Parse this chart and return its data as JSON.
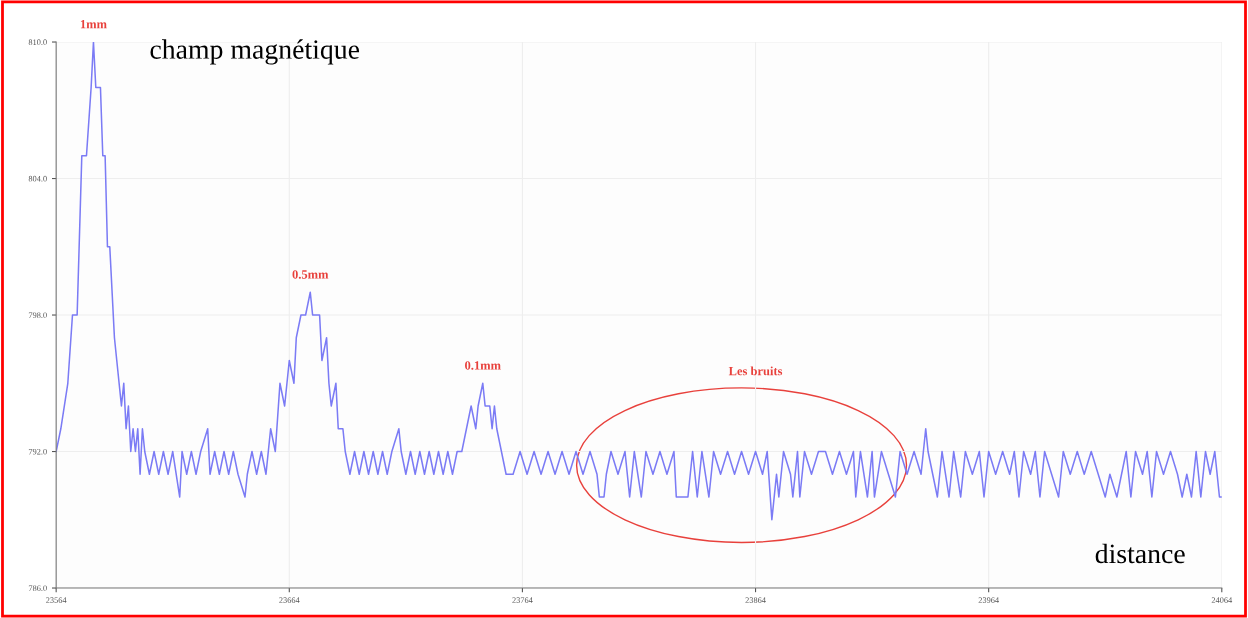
{
  "chart_data": {
    "type": "line",
    "xlabel": "distance",
    "ylabel": "champ magnétique",
    "xlim": [
      23564,
      24064
    ],
    "ylim": [
      786,
      810
    ],
    "grid": true,
    "marker": "none",
    "line_style": "solid",
    "xticks": [
      23564,
      23664,
      23764,
      23864,
      23964,
      24064
    ],
    "yticks": [
      {
        "value": 786,
        "label": "786.0"
      },
      {
        "value": 792,
        "label": "792.0"
      },
      {
        "value": 798,
        "label": "798.0"
      },
      {
        "value": 804,
        "label": "804.0"
      },
      {
        "value": 810,
        "label": "810.0"
      }
    ],
    "annotations": [
      {
        "text": "1mm",
        "x": 23580,
        "y": 810
      },
      {
        "text": "0.5mm",
        "x": 23673,
        "y": 799
      },
      {
        "text": "0.1mm",
        "x": 23747,
        "y": 795
      },
      "Les bruits"
    ],
    "series": [
      {
        "color": "#7b7bf5",
        "x": [
          23564,
          23566,
          23569,
          23571,
          23573,
          23575,
          23577,
          23579,
          23580,
          23581,
          23583,
          23584,
          23585,
          23586,
          23587,
          23589,
          23590,
          23591,
          23592,
          23593,
          23594,
          23595,
          23596,
          23597,
          23598,
          23599,
          23600,
          23601,
          23602,
          23604,
          23606,
          23608,
          23610,
          23612,
          23614,
          23617,
          23618,
          23620,
          23622,
          23624,
          23626,
          23629,
          23630,
          23632,
          23634,
          23636,
          23638,
          23640,
          23642,
          23645,
          23646,
          23648,
          23650,
          23652,
          23654,
          23656,
          23658,
          23660,
          23662,
          23664,
          23666,
          23667,
          23669,
          23671,
          23673,
          23674,
          23677,
          23678,
          23680,
          23681,
          23682,
          23684,
          23685,
          23687,
          23688,
          23690,
          23692,
          23694,
          23696,
          23698,
          23700,
          23702,
          23704,
          23706,
          23708,
          23711,
          23712,
          23714,
          23716,
          23718,
          23720,
          23722,
          23724,
          23726,
          23728,
          23730,
          23732,
          23734,
          23736,
          23738,
          23740,
          23742,
          23744,
          23745,
          23747,
          23748,
          23750,
          23751,
          23752,
          23753,
          23755,
          23757,
          23760,
          23763,
          23766,
          23769,
          23772,
          23775,
          23778,
          23781,
          23784,
          23787,
          23790,
          23793,
          23796,
          23797,
          23799,
          23800,
          23802,
          23805,
          23808,
          23810,
          23812,
          23815,
          23817,
          23820,
          23823,
          23826,
          23829,
          23830,
          23833,
          23835,
          23837,
          23839,
          23841,
          23844,
          23846,
          23849,
          23852,
          23855,
          23858,
          23861,
          23864,
          23867,
          23869,
          23871,
          23873,
          23874,
          23876,
          23879,
          23880,
          23882,
          23883,
          23885,
          23888,
          23891,
          23894,
          23897,
          23900,
          23903,
          23906,
          23907,
          23909,
          23912,
          23914,
          23915,
          23918,
          23921,
          23924,
          23926,
          23929,
          23932,
          23935,
          23937,
          23938,
          23940,
          23942,
          23944,
          23947,
          23949,
          23952,
          23954,
          23957,
          23960,
          23962,
          23964,
          23967,
          23970,
          23973,
          23975,
          23977,
          23979,
          23982,
          23984,
          23986,
          23988,
          23991,
          23994,
          23996,
          23999,
          24002,
          24005,
          24008,
          24011,
          24014,
          24016,
          24019,
          24021,
          24023,
          24025,
          24027,
          24030,
          24032,
          24034,
          24036,
          24039,
          24042,
          24045,
          24047,
          24049,
          24051,
          24053,
          24055,
          24057,
          24059,
          24061,
          24063,
          24064
        ],
        "values": [
          792,
          793,
          795,
          798,
          798,
          805,
          805,
          808,
          810,
          808,
          808,
          805,
          805,
          801,
          801,
          797,
          796,
          795,
          794,
          795,
          793,
          794,
          792,
          793,
          792,
          793,
          791,
          793,
          792,
          791,
          792,
          791,
          792,
          791,
          792,
          790,
          792,
          791,
          792,
          791,
          792,
          793,
          791,
          792,
          791,
          792,
          791,
          792,
          791,
          790,
          791,
          792,
          791,
          792,
          791,
          793,
          792,
          795,
          794,
          796,
          795,
          797,
          798,
          798,
          799,
          798,
          798,
          796,
          797,
          795,
          794,
          795,
          793,
          793,
          792,
          791,
          792,
          791,
          792,
          791,
          792,
          791,
          792,
          791,
          792,
          793,
          792,
          791,
          792,
          791,
          792,
          791,
          792,
          791,
          792,
          791,
          792,
          791,
          792,
          792,
          793,
          794,
          793,
          794,
          795,
          794,
          794,
          793,
          794,
          793,
          792,
          791,
          791,
          792,
          791,
          792,
          791,
          792,
          791,
          792,
          791,
          792,
          791,
          792,
          791,
          790,
          790,
          791,
          792,
          791,
          792,
          790,
          792,
          790,
          792,
          791,
          792,
          791,
          792,
          790,
          790,
          790,
          792,
          790,
          792,
          790,
          792,
          791,
          792,
          791,
          792,
          791,
          792,
          791,
          792,
          789,
          791,
          790,
          792,
          791,
          790,
          792,
          790,
          792,
          791,
          792,
          792,
          791,
          792,
          791,
          792,
          790,
          792,
          790,
          792,
          790,
          792,
          791,
          790,
          792,
          791,
          792,
          791,
          793,
          792,
          791,
          790,
          792,
          790,
          792,
          790,
          792,
          791,
          792,
          790,
          792,
          791,
          792,
          791,
          792,
          790,
          792,
          791,
          792,
          790,
          792,
          791,
          790,
          792,
          791,
          792,
          791,
          792,
          791,
          790,
          791,
          790,
          791,
          792,
          790,
          792,
          791,
          792,
          790,
          792,
          791,
          792,
          791,
          790,
          791,
          790,
          792,
          790,
          792,
          791,
          792,
          790,
          790
        ]
      }
    ]
  }
}
